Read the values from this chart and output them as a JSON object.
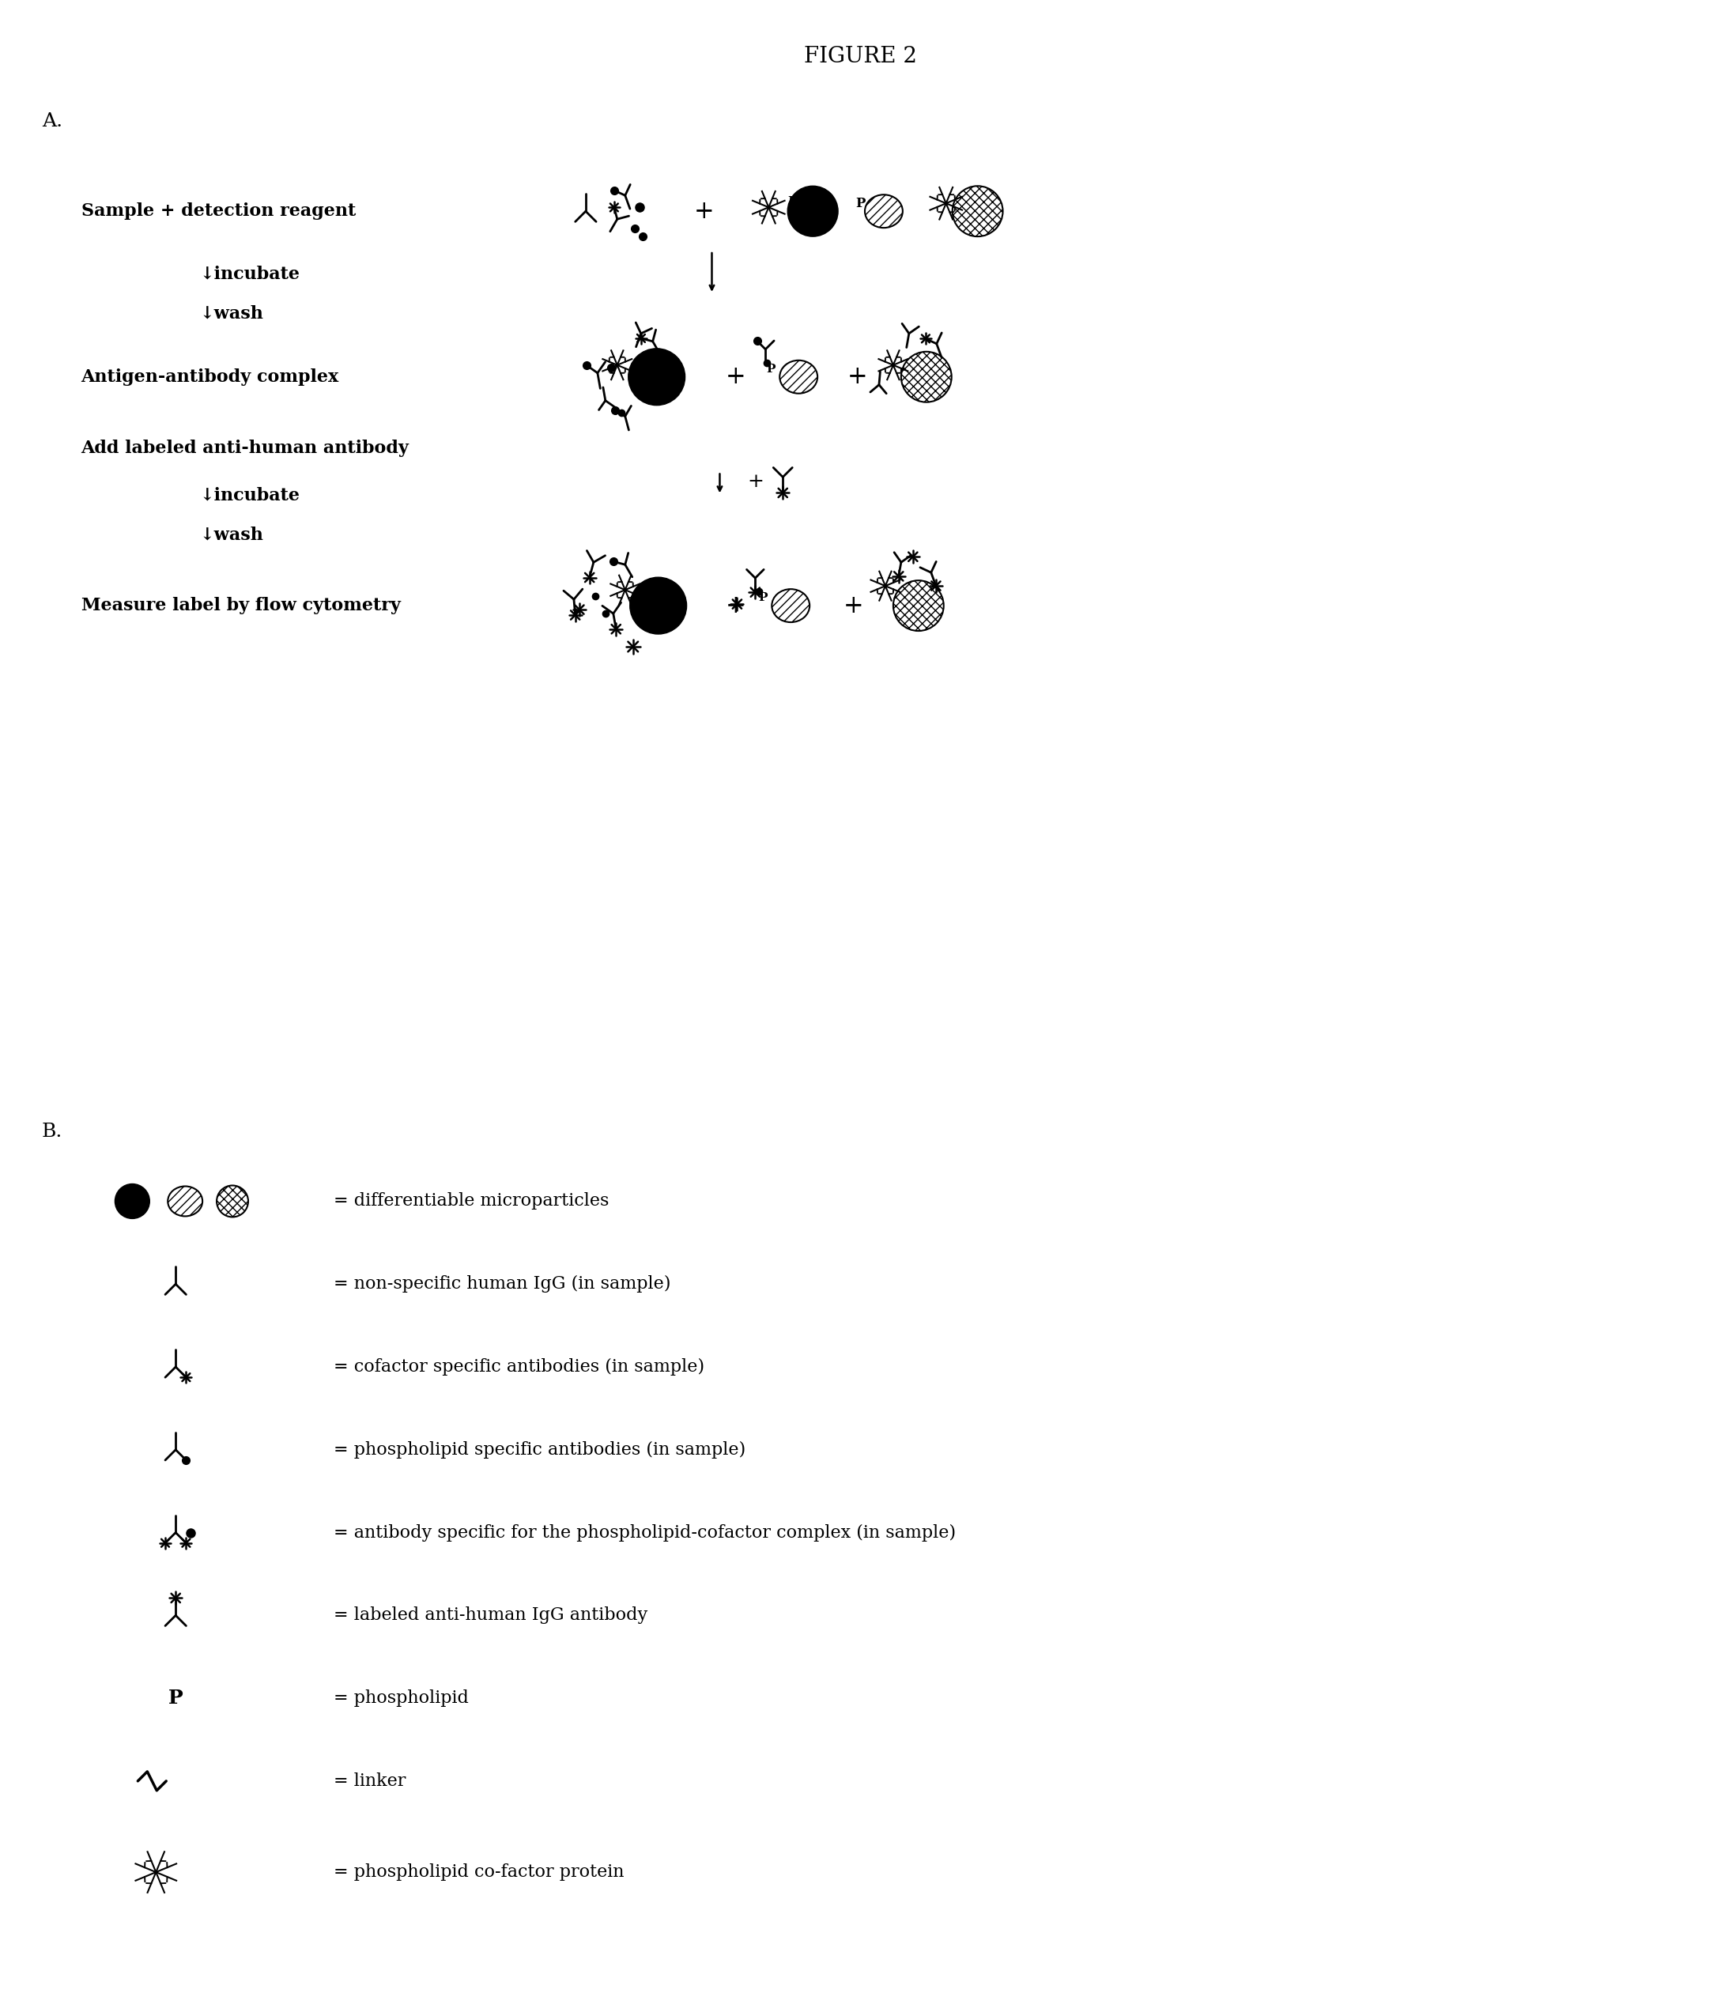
{
  "title": "FIGURE 2",
  "bg_color": "#ffffff",
  "text_color": "#000000",
  "section_A_label": "A.",
  "section_B_label": "B.",
  "row1_text": "Sample + detection reagent",
  "incubate_text": "↓incubate",
  "wash_text": "↓wash",
  "row3_text": "Antigen-antibody complex",
  "row4_text": "Add labeled anti-human antibody",
  "row5_text": "Measure label by flow cytometry",
  "legend_items": [
    "= differentiable microparticles",
    "= non-specific human IgG (in sample)",
    "= cofactor specific antibodies (in sample)",
    "= phospholipid specific antibodies (in sample)",
    "= antibody specific for the phospholipid-cofactor complex (in sample)",
    "= labeled anti-human IgG antibody",
    "= phospholipid",
    "= linker",
    "= phospholipid co-factor protein"
  ],
  "figure_width": 21.77,
  "figure_height": 25.45
}
